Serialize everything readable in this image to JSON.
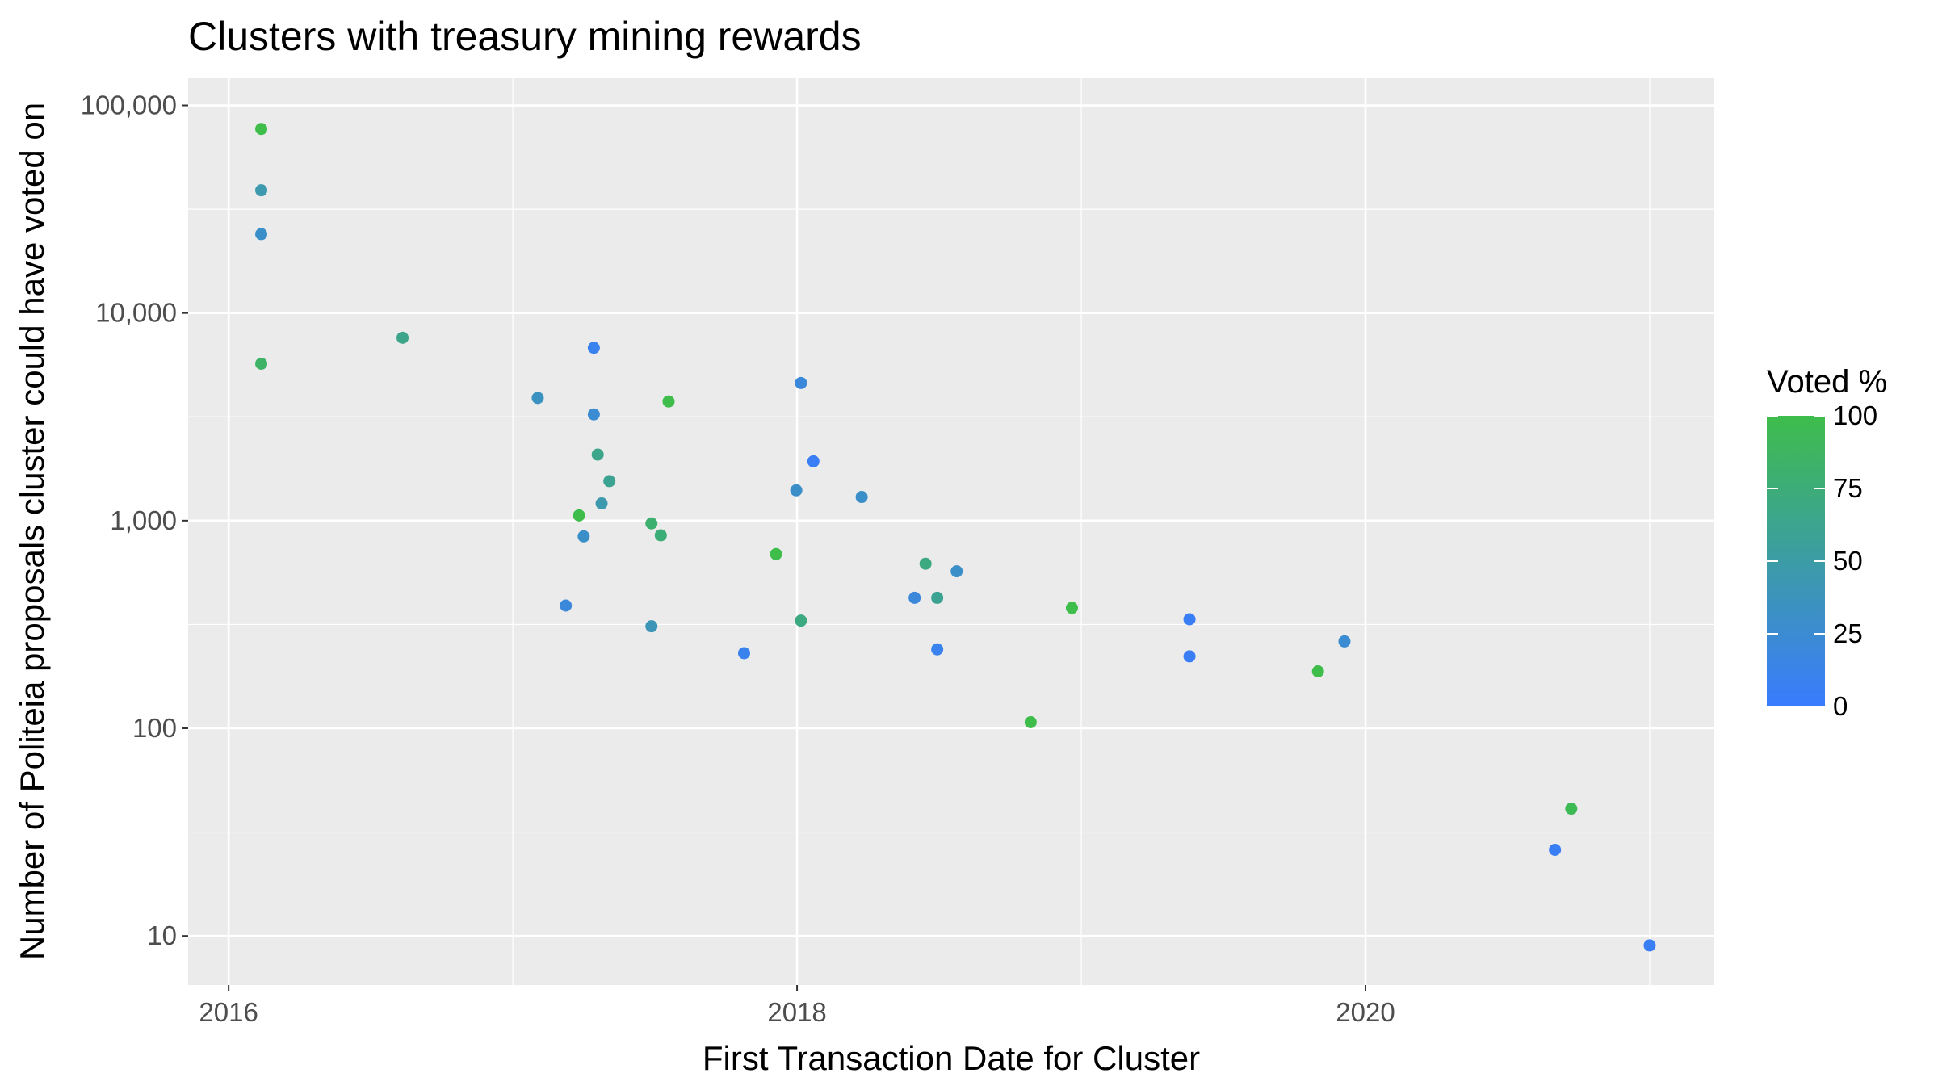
{
  "chart_data": {
    "type": "scatter",
    "title": "Clusters with treasury mining rewards",
    "xlabel": "First Transaction Date for Cluster",
    "ylabel": "Number of Politeia proposals cluster could have voted on",
    "x_axis": {
      "kind": "date",
      "range": [
        "2015-11-10",
        "2021-03-25"
      ],
      "ticks": [
        "2016",
        "2018",
        "2020"
      ]
    },
    "y_axis": {
      "scale": "log10",
      "range": [
        5.8,
        135000
      ],
      "ticks": [
        "10",
        "100",
        "1,000",
        "10,000",
        "100,000"
      ]
    },
    "grid": true,
    "legend": {
      "title": "Voted %",
      "position": "right",
      "ticks": [
        "0",
        "25",
        "50",
        "75",
        "100"
      ],
      "color_low": "#3a7bff",
      "color_high": "#3ebd4b"
    },
    "points": [
      {
        "x": "2016-02-12",
        "y": 77000,
        "voted": 100
      },
      {
        "x": "2016-02-12",
        "y": 39000,
        "voted": 45
      },
      {
        "x": "2016-02-12",
        "y": 24000,
        "voted": 30
      },
      {
        "x": "2016-02-12",
        "y": 5700,
        "voted": 85
      },
      {
        "x": "2016-08-12",
        "y": 7600,
        "voted": 65
      },
      {
        "x": "2017-02-02",
        "y": 3900,
        "voted": 35
      },
      {
        "x": "2017-03-10",
        "y": 390,
        "voted": 20
      },
      {
        "x": "2017-03-27",
        "y": 1060,
        "voted": 100
      },
      {
        "x": "2017-04-02",
        "y": 840,
        "voted": 30
      },
      {
        "x": "2017-04-15",
        "y": 6800,
        "voted": 10
      },
      {
        "x": "2017-04-15",
        "y": 3250,
        "voted": 25
      },
      {
        "x": "2017-04-20",
        "y": 2080,
        "voted": 65
      },
      {
        "x": "2017-04-25",
        "y": 1210,
        "voted": 45
      },
      {
        "x": "2017-05-05",
        "y": 1550,
        "voted": 60
      },
      {
        "x": "2017-06-28",
        "y": 970,
        "voted": 80
      },
      {
        "x": "2017-06-28",
        "y": 310,
        "voted": 40
      },
      {
        "x": "2017-07-10",
        "y": 850,
        "voted": 75
      },
      {
        "x": "2017-07-20",
        "y": 3750,
        "voted": 100
      },
      {
        "x": "2017-10-25",
        "y": 230,
        "voted": 10
      },
      {
        "x": "2017-12-05",
        "y": 690,
        "voted": 100
      },
      {
        "x": "2017-12-31",
        "y": 1400,
        "voted": 30
      },
      {
        "x": "2018-01-06",
        "y": 4600,
        "voted": 20
      },
      {
        "x": "2018-01-06",
        "y": 330,
        "voted": 70
      },
      {
        "x": "2018-01-22",
        "y": 1930,
        "voted": 5
      },
      {
        "x": "2018-03-25",
        "y": 1300,
        "voted": 30
      },
      {
        "x": "2018-06-01",
        "y": 425,
        "voted": 20
      },
      {
        "x": "2018-06-15",
        "y": 620,
        "voted": 70
      },
      {
        "x": "2018-06-30",
        "y": 425,
        "voted": 60
      },
      {
        "x": "2018-06-30",
        "y": 240,
        "voted": 10
      },
      {
        "x": "2018-07-25",
        "y": 570,
        "voted": 30
      },
      {
        "x": "2018-10-28",
        "y": 107,
        "voted": 100
      },
      {
        "x": "2018-12-20",
        "y": 380,
        "voted": 100
      },
      {
        "x": "2019-05-20",
        "y": 335,
        "voted": 5
      },
      {
        "x": "2019-05-20",
        "y": 222,
        "voted": 5
      },
      {
        "x": "2019-11-01",
        "y": 188,
        "voted": 100
      },
      {
        "x": "2019-12-05",
        "y": 262,
        "voted": 25
      },
      {
        "x": "2020-09-01",
        "y": 26,
        "voted": 5
      },
      {
        "x": "2020-09-22",
        "y": 41,
        "voted": 95
      },
      {
        "x": "2021-01-01",
        "y": 9,
        "voted": 5
      }
    ]
  }
}
